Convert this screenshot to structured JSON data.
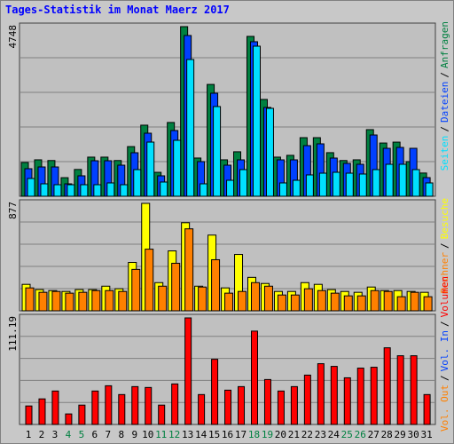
{
  "chart_data": [
    {
      "type": "bar",
      "title": "Tages-Statistik im Monat Maerz 2017",
      "categories": [
        "1",
        "2",
        "3",
        "4",
        "5",
        "6",
        "7",
        "8",
        "9",
        "10",
        "11",
        "12",
        "13",
        "14",
        "15",
        "16",
        "17",
        "18",
        "19",
        "20",
        "21",
        "22",
        "23",
        "24",
        "25",
        "26",
        "27",
        "28",
        "29",
        "30",
        "31"
      ],
      "category_colors": [
        "#000000",
        "#000000",
        "#000000",
        "#008040",
        "#008040",
        "#000000",
        "#000000",
        "#000000",
        "#000000",
        "#000000",
        "#008040",
        "#008040",
        "#000000",
        "#000000",
        "#000000",
        "#000000",
        "#000000",
        "#008040",
        "#008040",
        "#000000",
        "#000000",
        "#000000",
        "#000000",
        "#000000",
        "#008040",
        "#008040",
        "#000000",
        "#000000",
        "#000000",
        "#000000",
        "#000000"
      ],
      "legend_separator": "/",
      "ylim": [
        0,
        4748
      ],
      "yticks": [
        4748
      ],
      "series": [
        {
          "name": "Anfragen",
          "color": "#008040",
          "values": [
            945,
            1020,
            1000,
            520,
            750,
            1095,
            1095,
            1000,
            1390,
            1990,
            670,
            2065,
            4748,
            1070,
            3130,
            1020,
            1245,
            4475,
            2710,
            1095,
            1145,
            1640,
            1640,
            1220,
            1000,
            1020,
            1865,
            1490,
            1515,
            970,
            650
          ]
        },
        {
          "name": "Dateien",
          "color": "#0040ff",
          "values": [
            771,
            820,
            820,
            348,
            572,
            994,
            994,
            870,
            1218,
            1765,
            572,
            1840,
            4500,
            970,
            2884,
            870,
            1019,
            4326,
            2486,
            1019,
            1019,
            1417,
            1467,
            1069,
            920,
            895,
            1715,
            1342,
            1367,
            1342,
            522
          ]
        },
        {
          "name": "Seiten",
          "color": "#00e0ff",
          "values": [
            497,
            348,
            323,
            323,
            323,
            323,
            373,
            323,
            746,
            1516,
            398,
            1566,
            3828,
            348,
            2511,
            447,
            746,
            4201,
            2461,
            373,
            447,
            597,
            646,
            671,
            646,
            622,
            746,
            895,
            895,
            746,
            373
          ]
        }
      ]
    },
    {
      "type": "bar",
      "legend_separator": "/",
      "ylim": [
        0,
        877
      ],
      "yticks": [
        877
      ],
      "series": [
        {
          "name": "Besuche",
          "color": "#ffff00",
          "values": [
            216,
            173,
            165,
            158,
            173,
            173,
            201,
            180,
            395,
            877,
            230,
            489,
            719,
            201,
            618,
            187,
            460,
            273,
            223,
            158,
            158,
            230,
            216,
            173,
            158,
            151,
            194,
            165,
            165,
            158,
            151
          ]
        },
        {
          "name": "Rechner",
          "color": "#ff8000",
          "values": [
            187,
            151,
            158,
            144,
            151,
            165,
            165,
            158,
            338,
            503,
            201,
            388,
            669,
            194,
            417,
            144,
            158,
            230,
            201,
            129,
            129,
            180,
            165,
            144,
            122,
            122,
            165,
            158,
            115,
            151,
            115
          ]
        }
      ]
    },
    {
      "type": "bar",
      "legend_separator": "/",
      "ylim": [
        0,
        111.19
      ],
      "yticks": [
        111.19
      ],
      "series": [
        {
          "name": "Volumen",
          "color": "#ff0000",
          "values": [
            19.3,
            26.7,
            34.9,
            11.0,
            20.2,
            34.9,
            40.4,
            31.2,
            39.5,
            38.6,
            20.2,
            42.3,
            111.19,
            31.2,
            68.0,
            35.8,
            39.5,
            97.4,
            46.9,
            34.9,
            39.5,
            51.5,
            63.4,
            60.6,
            48.7,
            58.8,
            59.7,
            80.0,
            71.7,
            71.7,
            31.2
          ]
        }
      ],
      "legend_extra": [
        {
          "name": "Vol. In",
          "color": "#0040ff"
        },
        {
          "name": "Vol. Out",
          "color": "#ff8000"
        }
      ]
    }
  ]
}
